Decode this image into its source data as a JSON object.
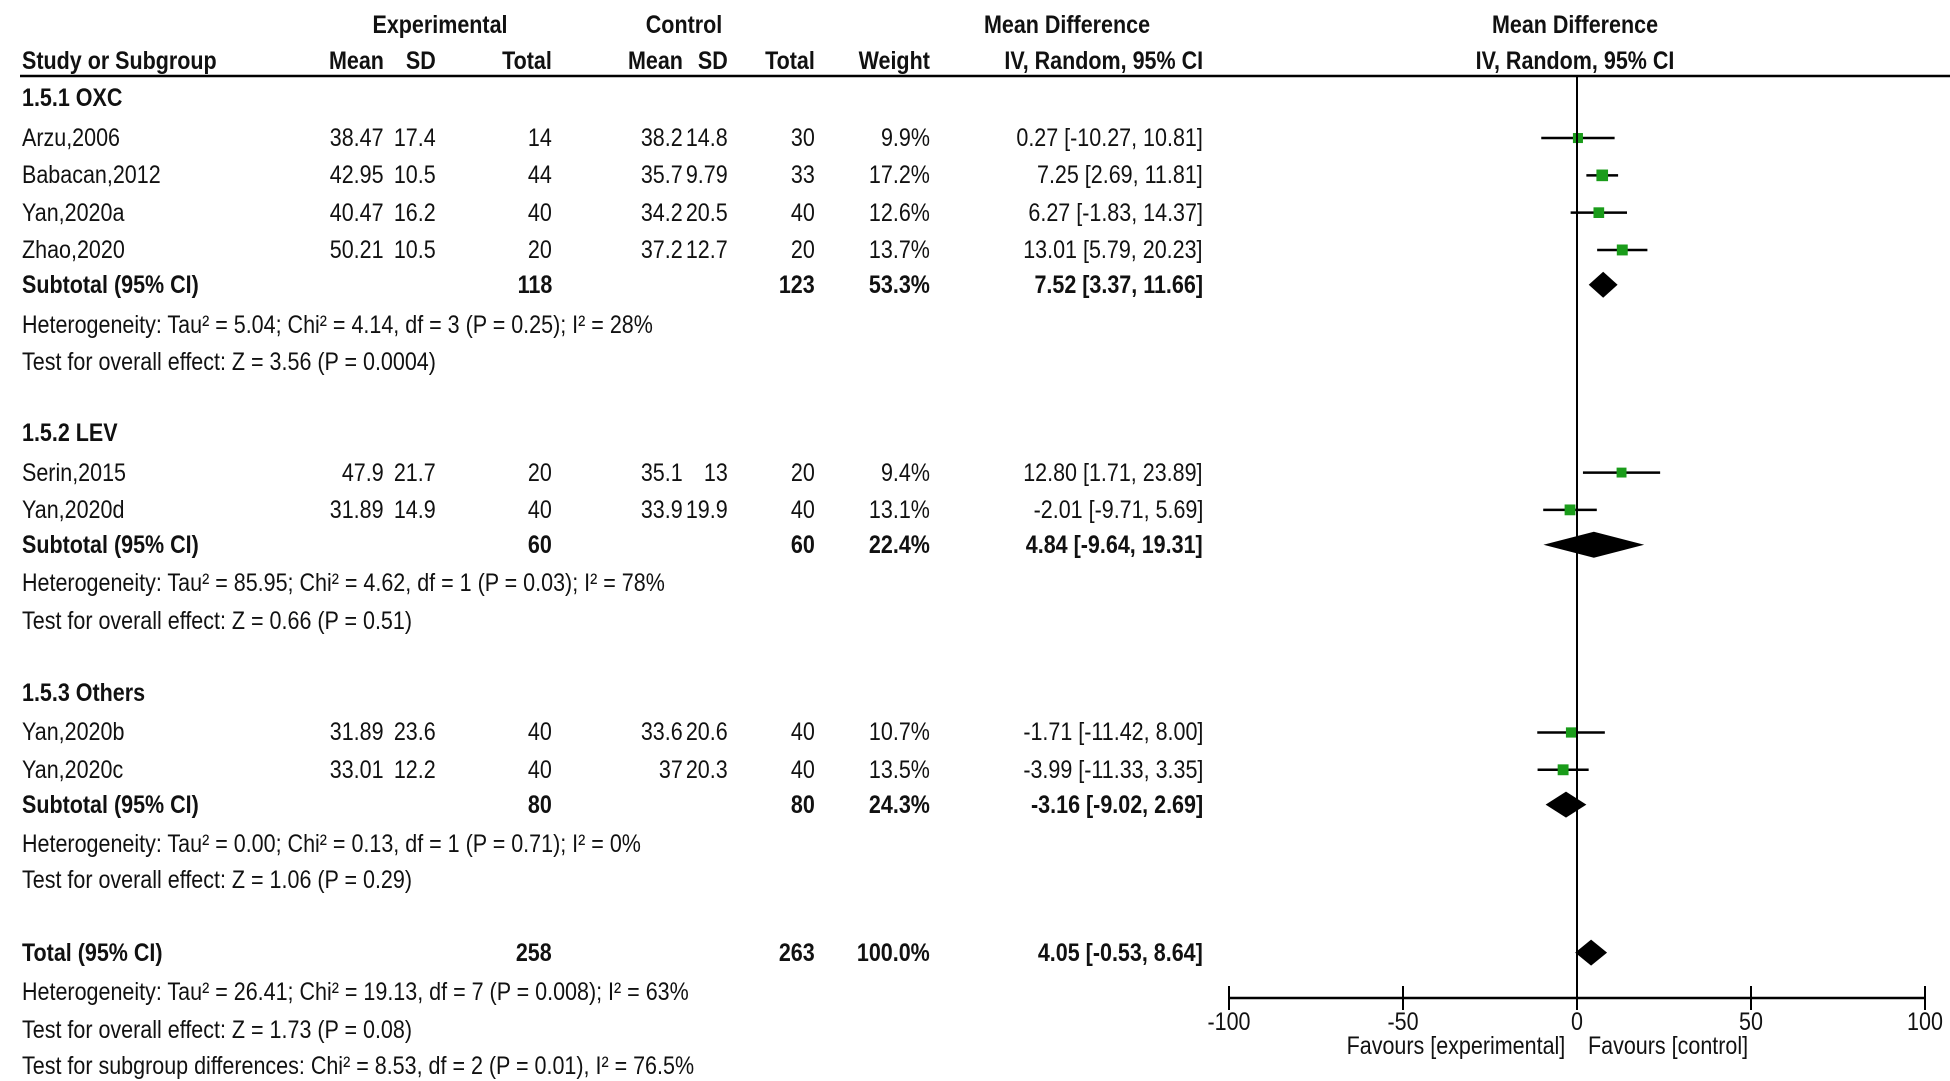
{
  "header": {
    "group1": "Experimental",
    "group2": "Control",
    "effect_col": "Mean Difference",
    "effect_col_method": "IV, Random, 95% CI",
    "plot_col": "Mean Difference",
    "plot_col_method": "IV, Random, 95% CI",
    "columns": [
      "Study or Subgroup",
      "Mean",
      "SD",
      "Total",
      "Mean",
      "SD",
      "Total",
      "Weight",
      "IV, Random, 95% CI"
    ]
  },
  "subgroups": [
    {
      "title": "1.5.1 OXC",
      "studies": [
        {
          "name": "Arzu,2006",
          "e_mean": "38.47",
          "e_sd": "17.4",
          "e_total": "14",
          "c_mean": "38.2",
          "c_sd": "14.8",
          "c_total": "30",
          "weight": "9.9%",
          "ci": "0.27 [-10.27, 10.81]",
          "md": 0.27,
          "lo": -10.27,
          "hi": 10.81,
          "w": 9.9
        },
        {
          "name": "Babacan,2012",
          "e_mean": "42.95",
          "e_sd": "10.5",
          "e_total": "44",
          "c_mean": "35.7",
          "c_sd": "9.79",
          "c_total": "33",
          "weight": "17.2%",
          "ci": "7.25 [2.69, 11.81]",
          "md": 7.25,
          "lo": 2.69,
          "hi": 11.81,
          "w": 17.2
        },
        {
          "name": "Yan,2020a",
          "e_mean": "40.47",
          "e_sd": "16.2",
          "e_total": "40",
          "c_mean": "34.2",
          "c_sd": "20.5",
          "c_total": "40",
          "weight": "12.6%",
          "ci": "6.27 [-1.83, 14.37]",
          "md": 6.27,
          "lo": -1.83,
          "hi": 14.37,
          "w": 12.6
        },
        {
          "name": "Zhao,2020",
          "e_mean": "50.21",
          "e_sd": "10.5",
          "e_total": "20",
          "c_mean": "37.2",
          "c_sd": "12.7",
          "c_total": "20",
          "weight": "13.7%",
          "ci": "13.01 [5.79, 20.23]",
          "md": 13.01,
          "lo": 5.79,
          "hi": 20.23,
          "w": 13.7
        }
      ],
      "subtotal": {
        "label": "Subtotal (95% CI)",
        "e_total": "118",
        "c_total": "123",
        "weight": "53.3%",
        "ci": "7.52 [3.37, 11.66]",
        "md": 7.52,
        "lo": 3.37,
        "hi": 11.66
      },
      "heterogeneity": "Heterogeneity: Tau² = 5.04; Chi² = 4.14, df = 3 (P = 0.25); I² = 28%",
      "overall": "Test for overall effect: Z = 3.56 (P = 0.0004)"
    },
    {
      "title": "1.5.2 LEV",
      "studies": [
        {
          "name": "Serin,2015",
          "e_mean": "47.9",
          "e_sd": "21.7",
          "e_total": "20",
          "c_mean": "35.1",
          "c_sd": "13",
          "c_total": "20",
          "weight": "9.4%",
          "ci": "12.80 [1.71, 23.89]",
          "md": 12.8,
          "lo": 1.71,
          "hi": 23.89,
          "w": 9.4
        },
        {
          "name": "Yan,2020d",
          "e_mean": "31.89",
          "e_sd": "14.9",
          "e_total": "40",
          "c_mean": "33.9",
          "c_sd": "19.9",
          "c_total": "40",
          "weight": "13.1%",
          "ci": "-2.01 [-9.71, 5.69]",
          "md": -2.01,
          "lo": -9.71,
          "hi": 5.69,
          "w": 13.1
        }
      ],
      "subtotal": {
        "label": "Subtotal (95% CI)",
        "e_total": "60",
        "c_total": "60",
        "weight": "22.4%",
        "ci": "4.84 [-9.64, 19.31]",
        "md": 4.84,
        "lo": -9.64,
        "hi": 19.31
      },
      "heterogeneity": "Heterogeneity: Tau² = 85.95; Chi² = 4.62, df = 1 (P = 0.03); I² = 78%",
      "overall": "Test for overall effect: Z = 0.66 (P = 0.51)"
    },
    {
      "title": "1.5.3 Others",
      "studies": [
        {
          "name": "Yan,2020b",
          "e_mean": "31.89",
          "e_sd": "23.6",
          "e_total": "40",
          "c_mean": "33.6",
          "c_sd": "20.6",
          "c_total": "40",
          "weight": "10.7%",
          "ci": "-1.71 [-11.42, 8.00]",
          "md": -1.71,
          "lo": -11.42,
          "hi": 8.0,
          "w": 10.7
        },
        {
          "name": "Yan,2020c",
          "e_mean": "33.01",
          "e_sd": "12.2",
          "e_total": "40",
          "c_mean": "37",
          "c_sd": "20.3",
          "c_total": "40",
          "weight": "13.5%",
          "ci": "-3.99 [-11.33, 3.35]",
          "md": -3.99,
          "lo": -11.33,
          "hi": 3.35,
          "w": 13.5
        }
      ],
      "subtotal": {
        "label": "Subtotal (95% CI)",
        "e_total": "80",
        "c_total": "80",
        "weight": "24.3%",
        "ci": "-3.16 [-9.02, 2.69]",
        "md": -3.16,
        "lo": -9.02,
        "hi": 2.69
      },
      "heterogeneity": "Heterogeneity: Tau² = 0.00; Chi² = 0.13, df = 1 (P = 0.71); I² = 0%",
      "overall": "Test for overall effect: Z = 1.06 (P = 0.29)"
    }
  ],
  "total": {
    "label": "Total (95% CI)",
    "e_total": "258",
    "c_total": "263",
    "weight": "100.0%",
    "ci": "4.05 [-0.53, 8.64]",
    "md": 4.05,
    "lo": -0.53,
    "hi": 8.64,
    "heterogeneity": "Heterogeneity: Tau² = 26.41; Chi² = 19.13, df = 7 (P = 0.008); I² = 63%",
    "overall": "Test for overall effect: Z = 1.73 (P = 0.08)",
    "subgroup_diff": "Test for subgroup differences: Chi² = 8.53, df = 2 (P = 0.01), I² = 76.5%"
  },
  "axis": {
    "ticks": [
      -100,
      -50,
      0,
      50,
      100
    ],
    "tick_labels": [
      "-100",
      "-50",
      "0",
      "50",
      "100"
    ],
    "left_label": "Favours [experimental]",
    "right_label": "Favours [control]"
  },
  "colors": {
    "study_marker": "#1a9c1a",
    "diamond": "#000000",
    "line": "#000000"
  },
  "chart_data": {
    "type": "forest",
    "title": "Mean Difference IV, Random, 95% CI",
    "xlabel": "Favours [experimental] / Favours [control]",
    "xlim": [
      -100,
      100
    ],
    "categories": [
      "Arzu,2006",
      "Babacan,2012",
      "Yan,2020a",
      "Zhao,2020",
      "Subtotal 1.5.1 OXC",
      "Serin,2015",
      "Yan,2020d",
      "Subtotal 1.5.2 LEV",
      "Yan,2020b",
      "Yan,2020c",
      "Subtotal 1.5.3 Others",
      "Total"
    ],
    "series": [
      {
        "name": "Mean Difference",
        "values": [
          0.27,
          7.25,
          6.27,
          13.01,
          7.52,
          12.8,
          -2.01,
          4.84,
          -1.71,
          -3.99,
          -3.16,
          4.05
        ]
      },
      {
        "name": "CI lower",
        "values": [
          -10.27,
          2.69,
          -1.83,
          5.79,
          3.37,
          1.71,
          -9.71,
          -9.64,
          -11.42,
          -11.33,
          -9.02,
          -0.53
        ]
      },
      {
        "name": "CI upper",
        "values": [
          10.81,
          11.81,
          14.37,
          20.23,
          11.66,
          23.89,
          5.69,
          19.31,
          8.0,
          3.35,
          2.69,
          8.64
        ]
      },
      {
        "name": "Weight %",
        "values": [
          9.9,
          17.2,
          12.6,
          13.7,
          53.3,
          9.4,
          13.1,
          22.4,
          10.7,
          13.5,
          24.3,
          100.0
        ]
      }
    ]
  }
}
